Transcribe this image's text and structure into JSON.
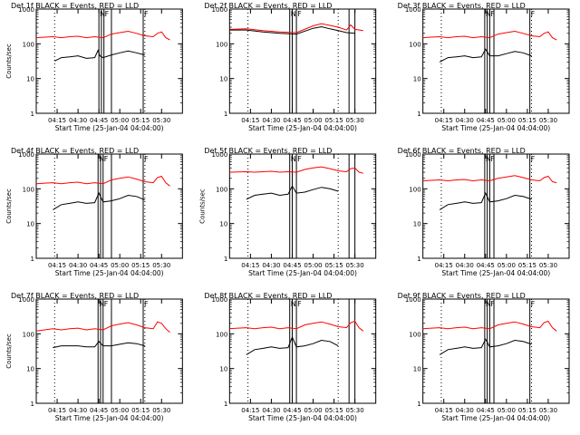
{
  "chart_data": {
    "type": "line",
    "layout": "3x3 grid",
    "y_scale": "log",
    "ylim": [
      1,
      1000
    ],
    "y_ticks": [
      {
        "value": 1,
        "label": "1"
      },
      {
        "value": 10,
        "label": "10"
      },
      {
        "value": 100,
        "label": "100"
      },
      {
        "value": 1000,
        "label": "1000"
      }
    ],
    "x_range_min": [
      4.0,
      5.75
    ],
    "x_ticks": [
      {
        "value": 4.25,
        "label": "04:15"
      },
      {
        "value": 4.5,
        "label": "04:30"
      },
      {
        "value": 4.75,
        "label": "04:45"
      },
      {
        "value": 5.0,
        "label": "05:00"
      },
      {
        "value": 5.25,
        "label": "05:15"
      },
      {
        "value": 5.5,
        "label": "05:30"
      }
    ],
    "xlabel": "Start Time (25-Jan-04 04:04:00)",
    "ylabel": "Counts/sec",
    "series_colors": {
      "events": "#000000",
      "lld": "#ff0000"
    },
    "dotted_markers_x": [
      4.22,
      5.3
    ],
    "panels": [
      {
        "title": "Det 1f BLACK = Events, RED = LLD",
        "show_ylabel": true,
        "markers": [
          {
            "x": 4.75,
            "label": "N"
          },
          {
            "x": 4.78,
            "label": ""
          },
          {
            "x": 4.81,
            "label": "F"
          },
          {
            "x": 4.9,
            "label": ""
          },
          {
            "x": 5.28,
            "label": "F"
          }
        ]
      },
      {
        "title": "Det 2f BLACK = Events, RED = LLD",
        "show_ylabel": false,
        "markers": [
          {
            "x": 4.72,
            "label": "N"
          },
          {
            "x": 4.75,
            "label": ""
          },
          {
            "x": 4.8,
            "label": "F"
          },
          {
            "x": 5.43,
            "label": ""
          },
          {
            "x": 5.5,
            "label": ""
          }
        ]
      },
      {
        "title": "Det 3f BLACK = Events, RED = LLD",
        "show_ylabel": false,
        "markers": [
          {
            "x": 4.74,
            "label": "N"
          },
          {
            "x": 4.77,
            "label": ""
          },
          {
            "x": 4.8,
            "label": "F"
          },
          {
            "x": 4.85,
            "label": ""
          },
          {
            "x": 5.28,
            "label": "F"
          }
        ]
      },
      {
        "title": "Det 4f BLACK = Events, RED = LLD",
        "show_ylabel": true,
        "markers": [
          {
            "x": 4.74,
            "label": "N"
          },
          {
            "x": 4.77,
            "label": ""
          },
          {
            "x": 4.8,
            "label": "F"
          },
          {
            "x": 4.9,
            "label": ""
          },
          {
            "x": 5.28,
            "label": "F"
          }
        ]
      },
      {
        "title": "Det 5f BLACK = Events, RED = LLD",
        "show_ylabel": true,
        "markers": [
          {
            "x": 4.72,
            "label": "N"
          },
          {
            "x": 4.75,
            "label": ""
          },
          {
            "x": 4.8,
            "label": "F"
          },
          {
            "x": 5.43,
            "label": ""
          },
          {
            "x": 5.5,
            "label": ""
          }
        ]
      },
      {
        "title": "Det 6f BLACK = Events, RED = LLD",
        "show_ylabel": false,
        "markers": [
          {
            "x": 4.74,
            "label": "N"
          },
          {
            "x": 4.77,
            "label": ""
          },
          {
            "x": 4.8,
            "label": "F"
          },
          {
            "x": 4.85,
            "label": ""
          },
          {
            "x": 5.28,
            "label": "F"
          }
        ]
      },
      {
        "title": "Det 7f BLACK = Events, RED = LLD",
        "show_ylabel": true,
        "markers": [
          {
            "x": 4.74,
            "label": "N"
          },
          {
            "x": 4.77,
            "label": ""
          },
          {
            "x": 4.8,
            "label": "F"
          },
          {
            "x": 4.9,
            "label": ""
          },
          {
            "x": 5.28,
            "label": "F"
          }
        ]
      },
      {
        "title": "Det 8f BLACK = Events, RED = LLD",
        "show_ylabel": false,
        "markers": [
          {
            "x": 4.72,
            "label": "N"
          },
          {
            "x": 4.75,
            "label": ""
          },
          {
            "x": 4.8,
            "label": "F"
          },
          {
            "x": 5.43,
            "label": ""
          },
          {
            "x": 5.5,
            "label": ""
          }
        ]
      },
      {
        "title": "Det 9f BLACK = Events, RED = LLD",
        "show_ylabel": false,
        "markers": [
          {
            "x": 4.74,
            "label": "N"
          },
          {
            "x": 4.77,
            "label": ""
          },
          {
            "x": 4.8,
            "label": "F"
          },
          {
            "x": 4.85,
            "label": ""
          },
          {
            "x": 5.28,
            "label": "F"
          }
        ]
      }
    ],
    "series": [
      {
        "panel": 0,
        "events": {
          "x": [
            4.22,
            4.3,
            4.4,
            4.5,
            4.6,
            4.7,
            4.74,
            4.76,
            4.8,
            4.9,
            5.0,
            5.1,
            5.2,
            5.3
          ],
          "y": [
            32,
            40,
            42,
            45,
            38,
            40,
            65,
            45,
            40,
            48,
            55,
            62,
            55,
            48
          ]
        },
        "lld": {
          "x": [
            4.0,
            4.1,
            4.2,
            4.3,
            4.4,
            4.5,
            4.6,
            4.7,
            4.8,
            4.9,
            5.0,
            5.1,
            5.2,
            5.3,
            5.4,
            5.45,
            5.5,
            5.55,
            5.6
          ],
          "y": [
            150,
            155,
            160,
            150,
            160,
            165,
            150,
            160,
            150,
            190,
            210,
            230,
            200,
            170,
            160,
            200,
            220,
            150,
            130
          ]
        }
      },
      {
        "panel": 1,
        "events": {
          "x": [
            4.0,
            4.2,
            4.4,
            4.6,
            4.8,
            5.0,
            5.1,
            5.2,
            5.3,
            5.4,
            5.5
          ],
          "y": [
            250,
            250,
            220,
            200,
            190,
            280,
            310,
            270,
            240,
            210,
            200
          ]
        },
        "lld": {
          "x": [
            4.0,
            4.2,
            4.4,
            4.6,
            4.8,
            5.0,
            5.1,
            5.2,
            5.3,
            5.4,
            5.45,
            5.5,
            5.6
          ],
          "y": [
            260,
            270,
            240,
            220,
            210,
            330,
            380,
            340,
            300,
            250,
            350,
            260,
            240
          ]
        }
      },
      {
        "panel": 2,
        "events": {
          "x": [
            4.2,
            4.3,
            4.4,
            4.5,
            4.6,
            4.7,
            4.75,
            4.8,
            4.9,
            5.0,
            5.1,
            5.2,
            5.3
          ],
          "y": [
            30,
            40,
            42,
            45,
            40,
            42,
            70,
            45,
            45,
            52,
            60,
            55,
            45
          ]
        },
        "lld": {
          "x": [
            4.0,
            4.1,
            4.2,
            4.3,
            4.4,
            4.5,
            4.6,
            4.7,
            4.8,
            4.9,
            5.0,
            5.1,
            5.2,
            5.3,
            5.4,
            5.45,
            5.5,
            5.55,
            5.6
          ],
          "y": [
            150,
            155,
            160,
            150,
            160,
            165,
            150,
            160,
            150,
            190,
            210,
            230,
            200,
            170,
            160,
            200,
            220,
            150,
            130
          ]
        }
      },
      {
        "panel": 3,
        "events": {
          "x": [
            4.2,
            4.3,
            4.4,
            4.5,
            4.6,
            4.7,
            4.75,
            4.8,
            4.9,
            5.0,
            5.1,
            5.2,
            5.3
          ],
          "y": [
            25,
            35,
            38,
            42,
            38,
            40,
            75,
            42,
            45,
            52,
            65,
            60,
            48
          ]
        },
        "lld": {
          "x": [
            4.0,
            4.1,
            4.2,
            4.3,
            4.4,
            4.5,
            4.6,
            4.7,
            4.8,
            4.9,
            5.0,
            5.1,
            5.2,
            5.3,
            5.4,
            5.45,
            5.5,
            5.55,
            5.6
          ],
          "y": [
            140,
            145,
            150,
            140,
            150,
            155,
            140,
            150,
            140,
            180,
            200,
            220,
            190,
            160,
            150,
            210,
            230,
            150,
            120
          ]
        }
      },
      {
        "panel": 4,
        "events": {
          "x": [
            4.2,
            4.3,
            4.4,
            4.5,
            4.6,
            4.7,
            4.75,
            4.8,
            4.9,
            5.0,
            5.1,
            5.2,
            5.3
          ],
          "y": [
            50,
            65,
            70,
            75,
            65,
            70,
            120,
            75,
            80,
            95,
            110,
            100,
            85
          ]
        },
        "lld": {
          "x": [
            4.0,
            4.1,
            4.2,
            4.3,
            4.4,
            4.5,
            4.6,
            4.7,
            4.8,
            4.9,
            5.0,
            5.1,
            5.2,
            5.3,
            5.4,
            5.45,
            5.5,
            5.55,
            5.6
          ],
          "y": [
            300,
            305,
            310,
            300,
            310,
            320,
            300,
            310,
            300,
            360,
            400,
            430,
            380,
            330,
            310,
            380,
            400,
            300,
            280
          ]
        }
      },
      {
        "panel": 5,
        "events": {
          "x": [
            4.2,
            4.3,
            4.4,
            4.5,
            4.6,
            4.7,
            4.75,
            4.8,
            4.9,
            5.0,
            5.1,
            5.2,
            5.3
          ],
          "y": [
            25,
            35,
            38,
            42,
            38,
            40,
            75,
            42,
            45,
            52,
            65,
            60,
            50
          ]
        },
        "lld": {
          "x": [
            4.0,
            4.1,
            4.2,
            4.3,
            4.4,
            4.5,
            4.6,
            4.7,
            4.8,
            4.9,
            5.0,
            5.1,
            5.2,
            5.3,
            5.4,
            5.45,
            5.5,
            5.55,
            5.6
          ],
          "y": [
            170,
            175,
            180,
            170,
            180,
            185,
            170,
            180,
            170,
            200,
            220,
            240,
            210,
            180,
            170,
            210,
            230,
            160,
            150
          ]
        }
      },
      {
        "panel": 6,
        "events": {
          "x": [
            4.2,
            4.3,
            4.4,
            4.5,
            4.6,
            4.7,
            4.75,
            4.8,
            4.9,
            5.0,
            5.1,
            5.2,
            5.3
          ],
          "y": [
            40,
            45,
            45,
            45,
            42,
            42,
            60,
            45,
            45,
            50,
            55,
            52,
            45
          ]
        },
        "lld": {
          "x": [
            4.0,
            4.1,
            4.2,
            4.3,
            4.4,
            4.5,
            4.6,
            4.7,
            4.8,
            4.9,
            5.0,
            5.1,
            5.2,
            5.3,
            5.4,
            5.45,
            5.5,
            5.55,
            5.6
          ],
          "y": [
            120,
            130,
            140,
            130,
            140,
            145,
            130,
            140,
            130,
            170,
            190,
            210,
            180,
            150,
            140,
            220,
            200,
            140,
            110
          ]
        }
      },
      {
        "panel": 7,
        "events": {
          "x": [
            4.2,
            4.3,
            4.4,
            4.5,
            4.6,
            4.7,
            4.75,
            4.8,
            4.9,
            5.0,
            5.1,
            5.2,
            5.3
          ],
          "y": [
            25,
            35,
            38,
            42,
            38,
            40,
            80,
            42,
            45,
            52,
            65,
            60,
            45
          ]
        },
        "lld": {
          "x": [
            4.0,
            4.1,
            4.2,
            4.3,
            4.4,
            4.5,
            4.6,
            4.7,
            4.8,
            4.9,
            5.0,
            5.1,
            5.2,
            5.3,
            5.4,
            5.45,
            5.5,
            5.55,
            5.6
          ],
          "y": [
            140,
            145,
            150,
            140,
            150,
            155,
            140,
            150,
            140,
            180,
            200,
            220,
            190,
            160,
            150,
            210,
            230,
            150,
            120
          ]
        }
      },
      {
        "panel": 8,
        "events": {
          "x": [
            4.2,
            4.3,
            4.4,
            4.5,
            4.6,
            4.7,
            4.75,
            4.8,
            4.9,
            5.0,
            5.1,
            5.2,
            5.3
          ],
          "y": [
            25,
            35,
            38,
            42,
            38,
            40,
            70,
            42,
            45,
            52,
            65,
            60,
            50
          ]
        },
        "lld": {
          "x": [
            4.0,
            4.1,
            4.2,
            4.3,
            4.4,
            4.5,
            4.6,
            4.7,
            4.8,
            4.9,
            5.0,
            5.1,
            5.2,
            5.3,
            5.4,
            5.45,
            5.5,
            5.55,
            5.6
          ],
          "y": [
            140,
            145,
            150,
            140,
            150,
            155,
            140,
            150,
            140,
            180,
            200,
            220,
            190,
            160,
            150,
            210,
            230,
            150,
            120
          ]
        }
      }
    ]
  }
}
